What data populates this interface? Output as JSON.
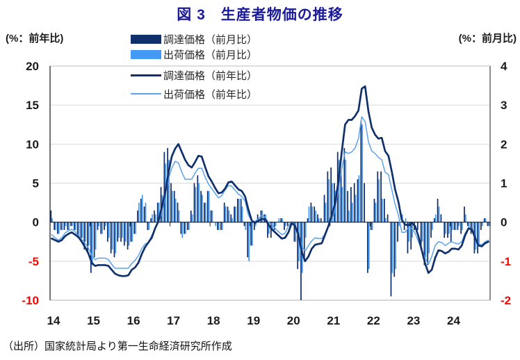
{
  "title": "図 3　生産者物価の推移",
  "axis_left_unit": "(%：前年比)",
  "axis_right_unit": "(%：前月比)",
  "source": "（出所）国家統計局より第一生命経済研究所作成",
  "colors": {
    "title": "#1b1b99",
    "procurement": "#10306c",
    "shipment": "#4499f5",
    "shipment_line": "#5aa2ee",
    "negative_label": "#ff0000",
    "positive_label": "#1a1a1a",
    "grid": "#d9d9d9",
    "frame": "#bfbfbf",
    "right_axis": "#737373",
    "left_axis": "#262626",
    "zero_line": "#1a1a1a"
  },
  "chart_data": {
    "type": "combo bar+line",
    "x": {
      "start": "2014-01",
      "frequency": "monthly",
      "n": 132
    },
    "x_year_labels": [
      "14",
      "15",
      "16",
      "17",
      "18",
      "19",
      "20",
      "21",
      "22",
      "23",
      "24"
    ],
    "left_axis": {
      "min": -10,
      "max": 20,
      "ticks": [
        20,
        15,
        10,
        5,
        0,
        -5,
        -10
      ],
      "label": "(%：前年比)"
    },
    "right_axis": {
      "min": -2,
      "max": 4,
      "ticks": [
        4,
        3,
        2,
        1,
        0,
        -1,
        -2
      ],
      "label": "(%：前月比)"
    },
    "grid": "horizontal",
    "legend_position": "top-center",
    "series": [
      {
        "name": "調達価格（前月比）",
        "type": "bar",
        "axis": "right",
        "color_key": "procurement",
        "values": [
          0.3,
          -0.2,
          -0.3,
          -0.2,
          -0.2,
          -0.2,
          -0.1,
          -0.2,
          -0.4,
          -0.5,
          -0.7,
          -0.8,
          -1.3,
          -0.9,
          -0.2,
          -0.3,
          -0.2,
          -0.5,
          -0.8,
          -0.9,
          -0.5,
          -0.5,
          -0.6,
          -0.7,
          -0.5,
          -0.3,
          0.3,
          0.6,
          0.4,
          -0.2,
          0.1,
          0.3,
          0.5,
          0.9,
          1.8,
          1.9,
          1.0,
          0.8,
          0.5,
          -0.3,
          -0.3,
          -0.2,
          0.3,
          1.0,
          1.2,
          0.8,
          0.5,
          0.8,
          0.3,
          0.0,
          -0.2,
          -0.2,
          0.5,
          0.4,
          0.2,
          0.4,
          0.6,
          0.6,
          -0.1,
          -0.9,
          -0.6,
          -0.2,
          0.2,
          0.3,
          0.2,
          -0.4,
          -0.4,
          -0.2,
          0.0,
          0.1,
          -0.2,
          -0.1,
          -0.1,
          -0.5,
          -1.2,
          -2.0,
          -1.0,
          0.1,
          0.5,
          0.4,
          0.2,
          0.1,
          0.7,
          1.3,
          1.4,
          1.0,
          1.8,
          1.3,
          1.9,
          0.8,
          0.9,
          1.0,
          1.1,
          2.6,
          1.0,
          -1.3,
          -0.2,
          0.6,
          1.3,
          1.3,
          0.6,
          0.2,
          -1.9,
          -1.4,
          -0.5,
          0.0,
          -0.2,
          -0.8,
          -0.7,
          -0.2,
          -0.2,
          -0.7,
          -1.1,
          -1.1,
          -0.4,
          0.1,
          0.6,
          0.2,
          -0.4,
          -0.4,
          -0.5,
          -0.2,
          -0.2,
          -0.3,
          0.4,
          -0.1,
          -0.3,
          -0.8,
          -0.8,
          -0.2,
          0.1,
          -0.1
        ]
      },
      {
        "name": "出荷価格（前月比）",
        "type": "bar",
        "axis": "right",
        "color_key": "shipment",
        "values": [
          0.1,
          -0.2,
          -0.3,
          -0.2,
          -0.1,
          -0.2,
          -0.1,
          -0.2,
          -0.4,
          -0.4,
          -0.5,
          -0.6,
          -1.1,
          -0.7,
          -0.1,
          -0.3,
          -0.1,
          -0.4,
          -0.7,
          -0.8,
          -0.4,
          -0.4,
          -0.5,
          -0.6,
          -0.5,
          -0.3,
          0.5,
          0.7,
          0.5,
          -0.2,
          0.2,
          0.2,
          0.5,
          0.7,
          1.5,
          1.6,
          0.8,
          0.6,
          0.3,
          -0.4,
          -0.3,
          -0.2,
          0.2,
          0.9,
          1.0,
          0.7,
          0.5,
          0.8,
          0.3,
          -0.1,
          -0.2,
          -0.2,
          0.4,
          0.3,
          0.1,
          0.4,
          0.6,
          0.4,
          -0.2,
          -1.0,
          -0.6,
          -0.1,
          0.1,
          0.3,
          0.2,
          -0.3,
          -0.2,
          -0.1,
          0.1,
          0.1,
          -0.1,
          0.0,
          0.0,
          -0.5,
          -1.0,
          -1.3,
          -0.4,
          0.4,
          0.4,
          0.3,
          0.1,
          0.0,
          0.5,
          1.1,
          1.0,
          0.8,
          1.6,
          0.9,
          1.6,
          0.3,
          0.5,
          0.7,
          1.2,
          2.5,
          0.0,
          -1.2,
          -0.2,
          0.5,
          1.1,
          0.6,
          0.1,
          0.0,
          -1.3,
          -1.2,
          -0.1,
          0.2,
          0.1,
          -0.5,
          -0.4,
          0.0,
          0.0,
          -0.5,
          -0.9,
          -0.8,
          -0.2,
          0.2,
          0.4,
          0.0,
          -0.3,
          -0.3,
          -0.2,
          -0.2,
          -0.1,
          -0.2,
          0.2,
          -0.2,
          -0.2,
          -0.7,
          -0.6,
          -0.1,
          0.1,
          -0.1
        ]
      },
      {
        "name": "調達価格（前年比）",
        "type": "line",
        "axis": "left",
        "color_key": "procurement",
        "values": [
          -2.1,
          -2.3,
          -2.5,
          -2.3,
          -1.8,
          -1.5,
          -1.3,
          -1.6,
          -1.9,
          -2.5,
          -3.2,
          -4.0,
          -5.2,
          -5.6,
          -5.5,
          -5.5,
          -5.5,
          -5.6,
          -6.1,
          -6.6,
          -6.8,
          -6.9,
          -6.9,
          -6.8,
          -6.1,
          -5.8,
          -5.2,
          -4.1,
          -3.2,
          -2.6,
          -2.0,
          -0.8,
          0.1,
          1.9,
          3.7,
          6.3,
          8.4,
          9.4,
          10.0,
          9.0,
          8.0,
          7.3,
          7.0,
          7.7,
          8.5,
          8.4,
          7.1,
          5.9,
          5.2,
          4.4,
          3.7,
          3.8,
          4.3,
          5.1,
          5.2,
          4.7,
          4.2,
          4.0,
          3.3,
          1.6,
          0.2,
          -0.1,
          0.2,
          0.4,
          0.4,
          -0.3,
          -0.9,
          -1.3,
          -1.7,
          -2.1,
          -2.0,
          -1.3,
          -0.1,
          -0.5,
          -1.6,
          -3.8,
          -5.0,
          -4.4,
          -3.4,
          -2.9,
          -2.8,
          -2.7,
          -1.6,
          -0.5,
          0.9,
          2.4,
          5.2,
          9.0,
          12.5,
          13.1,
          13.1,
          13.6,
          14.3,
          17.1,
          17.4,
          14.2,
          12.1,
          11.2,
          10.7,
          10.8,
          9.1,
          8.5,
          6.5,
          4.2,
          2.6,
          0.3,
          -0.3,
          -0.4,
          -0.1,
          -0.5,
          -1.8,
          -3.6,
          -5.3,
          -6.5,
          -6.1,
          -4.6,
          -3.6,
          -3.7,
          -4.0,
          -3.8,
          -3.4,
          -3.4,
          -3.5,
          -3.0,
          -1.7,
          -0.8,
          -0.9,
          -2.0,
          -3.0,
          -3.1,
          -2.7,
          -2.5
        ]
      },
      {
        "name": "出荷価格（前年比）",
        "type": "line",
        "axis": "left",
        "color_key": "shipment_line",
        "values": [
          -1.6,
          -2.0,
          -2.3,
          -2.0,
          -1.4,
          -1.1,
          -0.9,
          -1.2,
          -1.8,
          -2.2,
          -2.7,
          -3.3,
          -4.3,
          -4.8,
          -4.6,
          -4.6,
          -4.6,
          -4.8,
          -5.4,
          -5.9,
          -5.9,
          -5.9,
          -5.9,
          -5.9,
          -5.3,
          -4.9,
          -4.3,
          -3.4,
          -2.8,
          -2.6,
          -1.7,
          -0.8,
          0.1,
          1.2,
          3.3,
          5.5,
          6.9,
          7.8,
          7.6,
          6.4,
          5.5,
          5.5,
          5.5,
          6.3,
          6.9,
          6.9,
          5.8,
          4.9,
          4.3,
          3.7,
          3.1,
          3.4,
          4.1,
          4.7,
          4.6,
          4.1,
          3.6,
          3.3,
          2.7,
          0.9,
          0.1,
          0.1,
          0.4,
          0.9,
          0.6,
          0.0,
          -0.3,
          -0.8,
          -1.2,
          -1.6,
          -1.4,
          -0.5,
          0.1,
          -0.4,
          -1.5,
          -3.1,
          -3.7,
          -3.0,
          -2.4,
          -2.0,
          -2.1,
          -2.1,
          -1.5,
          -0.4,
          0.3,
          1.7,
          4.4,
          6.8,
          9.0,
          8.8,
          9.0,
          9.5,
          10.7,
          13.5,
          12.9,
          10.3,
          9.1,
          8.8,
          8.3,
          8.0,
          6.4,
          6.1,
          4.2,
          2.3,
          0.9,
          -1.3,
          -1.3,
          -0.7,
          -0.8,
          -1.4,
          -2.5,
          -3.6,
          -4.6,
          -5.4,
          -4.4,
          -3.0,
          -2.5,
          -2.6,
          -3.0,
          -2.7,
          -2.5,
          -2.7,
          -2.8,
          -2.5,
          -1.4,
          -0.8,
          -0.8,
          -1.8,
          -2.8,
          -2.9,
          -2.5,
          -2.3
        ]
      }
    ]
  }
}
